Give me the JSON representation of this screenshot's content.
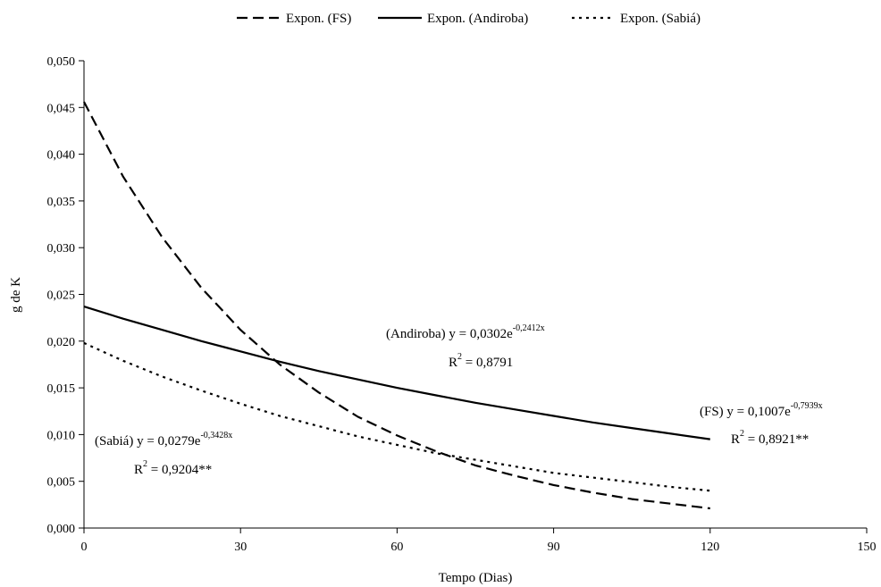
{
  "chart_data": {
    "type": "line",
    "title": "",
    "xlabel": "Tempo (Dias)",
    "ylabel": "g de K",
    "xlim": [
      0,
      150
    ],
    "ylim": [
      0,
      0.05
    ],
    "xticks": [
      0,
      30,
      60,
      90,
      120,
      150
    ],
    "xtick_labels": [
      "0",
      "30",
      "60",
      "90",
      "120",
      "150"
    ],
    "yticks": [
      0,
      0.005,
      0.01,
      0.015,
      0.02,
      0.025,
      0.03,
      0.035,
      0.04,
      0.045,
      0.05
    ],
    "ytick_labels": [
      "0,000",
      "0,005",
      "0,010",
      "0,015",
      "0,020",
      "0,025",
      "0,030",
      "0,035",
      "0,040",
      "0,045",
      "0,050"
    ],
    "grid": false,
    "legend_position": "top",
    "series": [
      {
        "name": "Expon. (FS)",
        "style": "dashed",
        "x": [
          0,
          7.5,
          15,
          22.5,
          30,
          37.5,
          45,
          52.5,
          60,
          67.5,
          75,
          82.5,
          90,
          97.5,
          105,
          112.5,
          120
        ],
        "y": [
          0.0456,
          0.0376,
          0.0311,
          0.0257,
          0.0212,
          0.0175,
          0.0145,
          0.0119,
          0.0099,
          0.0082,
          0.0067,
          0.0056,
          0.0046,
          0.0038,
          0.0031,
          0.0026,
          0.0021
        ]
      },
      {
        "name": "Expon. (Andiroba)",
        "style": "solid",
        "x": [
          0,
          7.5,
          15,
          22.5,
          30,
          37.5,
          45,
          52.5,
          60,
          67.5,
          75,
          82.5,
          90,
          97.5,
          105,
          112.5,
          120
        ],
        "y": [
          0.0237,
          0.0224,
          0.0212,
          0.02,
          0.0189,
          0.0178,
          0.0168,
          0.0159,
          0.015,
          0.0142,
          0.0134,
          0.0127,
          0.012,
          0.0113,
          0.0107,
          0.0101,
          0.0095
        ]
      },
      {
        "name": "Expon. (Sabiá)",
        "style": "dotted",
        "x": [
          0,
          7.5,
          15,
          22.5,
          30,
          37.5,
          45,
          52.5,
          60,
          67.5,
          75,
          82.5,
          90,
          97.5,
          105,
          112.5,
          120
        ],
        "y": [
          0.0198,
          0.0179,
          0.0162,
          0.0147,
          0.0133,
          0.012,
          0.0109,
          0.0098,
          0.0089,
          0.008,
          0.0073,
          0.0066,
          0.0059,
          0.0054,
          0.0049,
          0.0044,
          0.004
        ]
      }
    ],
    "annotations": [
      {
        "id": "andiroba",
        "line1_pre": "(Andiroba) y = 0,0302e",
        "line1_sup": "-0,2412x",
        "line2_pre": "R",
        "line2_sup": "2",
        "line2_post": " = 0,8791"
      },
      {
        "id": "fs",
        "line1_pre": "(FS) y = 0,1007e",
        "line1_sup": "-0,7939x",
        "line2_pre": "R",
        "line2_sup": "2",
        "line2_post": " = 0,8921**"
      },
      {
        "id": "sabia",
        "line1_pre": "(Sabiá) y = 0,0279e",
        "line1_sup": "-0,3428x",
        "line2_pre": "R",
        "line2_sup": "2",
        "line2_post": " = 0,9204**"
      }
    ]
  }
}
